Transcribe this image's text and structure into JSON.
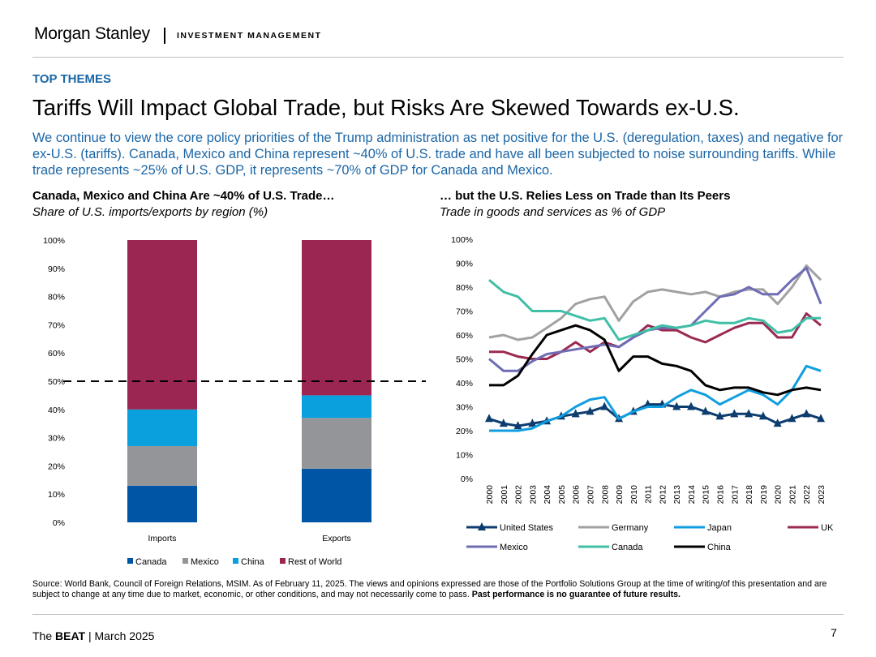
{
  "header": {
    "brand": "Morgan Stanley",
    "brand_sub": "INVESTMENT MANAGEMENT"
  },
  "section_label": "TOP THEMES",
  "title": "Tariffs Will Impact Global Trade, but Risks Are Skewed Towards ex-U.S.",
  "subtitle": "We continue to view the core policy priorities of the Trump administration as net positive for the U.S. (deregulation, taxes) and negative for ex-U.S. (tariffs). Canada, Mexico and China represent ~40% of U.S. trade and have all been subjected to noise surrounding tariffs. While trade represents ~25% of U.S. GDP, it represents ~70% of GDP for Canada and Mexico.",
  "colors": {
    "accent": "#1b66a6",
    "canada_bar": "#0055a4",
    "mexico_bar": "#939598",
    "china_bar": "#0aa0dd",
    "row_bar": "#9a2651"
  },
  "left_chart": {
    "heading": "Canada, Mexico and China Are ~40% of U.S. Trade…",
    "subheading": "Share of U.S. imports/exports by region (%)"
  },
  "right_chart": {
    "heading": "… but the U.S. Relies Less on Trade than Its Peers",
    "subheading": "Trade in goods and services as % of GDP"
  },
  "chart_data": [
    {
      "type": "bar",
      "stacked": true,
      "categories": [
        "Imports",
        "Exports"
      ],
      "series": [
        {
          "name": "Canada",
          "color": "#0055a4",
          "values": [
            13,
            19
          ]
        },
        {
          "name": "Mexico",
          "color": "#939598",
          "values": [
            14,
            18
          ]
        },
        {
          "name": "China",
          "color": "#0aa0dd",
          "values": [
            13,
            8
          ]
        },
        {
          "name": "Rest of World",
          "color": "#9a2651",
          "values": [
            60,
            55
          ]
        }
      ],
      "ylim": [
        0,
        100
      ],
      "yticks": [
        "0%",
        "10%",
        "20%",
        "30%",
        "40%",
        "50%",
        "60%",
        "70%",
        "80%",
        "90%",
        "100%"
      ],
      "reference_line": {
        "value": 50,
        "style": "dashed"
      },
      "legend": "bottom"
    },
    {
      "type": "line",
      "x": [
        "2000",
        "2001",
        "2002",
        "2003",
        "2004",
        "2005",
        "2006",
        "2007",
        "2008",
        "2009",
        "2010",
        "2011",
        "2012",
        "2013",
        "2014",
        "2015",
        "2016",
        "2017",
        "2018",
        "2019",
        "2020",
        "2021",
        "2022",
        "2023"
      ],
      "series": [
        {
          "name": "United States",
          "color": "#0d3d6e",
          "marker": "triangle",
          "values": [
            25,
            23,
            22,
            23,
            24,
            26,
            27,
            28,
            30,
            25,
            28,
            31,
            31,
            30,
            30,
            28,
            26,
            27,
            27,
            26,
            23,
            25,
            27,
            25
          ]
        },
        {
          "name": "Germany",
          "color": "#a1a1a4",
          "values": [
            59,
            60,
            58,
            59,
            63,
            67,
            73,
            75,
            76,
            66,
            74,
            78,
            79,
            78,
            77,
            78,
            76,
            78,
            79,
            79,
            73,
            80,
            89,
            83
          ]
        },
        {
          "name": "Japan",
          "color": "#119ee0",
          "values": [
            20,
            20,
            20,
            21,
            24,
            26,
            30,
            33,
            34,
            25,
            28,
            30,
            30,
            34,
            37,
            35,
            31,
            34,
            37,
            35,
            31,
            37,
            47,
            45
          ]
        },
        {
          "name": "UK",
          "color": "#9b2a53",
          "values": [
            53,
            53,
            51,
            50,
            50,
            53,
            57,
            53,
            57,
            55,
            59,
            64,
            62,
            62,
            59,
            57,
            60,
            63,
            65,
            65,
            59,
            59,
            69,
            64
          ]
        },
        {
          "name": "Mexico",
          "color": "#6e6db4",
          "values": [
            50,
            45,
            45,
            49,
            52,
            53,
            54,
            55,
            56,
            55,
            59,
            62,
            63,
            63,
            64,
            70,
            76,
            77,
            80,
            77,
            77,
            83,
            88,
            73
          ]
        },
        {
          "name": "Canada",
          "color": "#3fbfa6",
          "values": [
            83,
            78,
            76,
            70,
            70,
            70,
            68,
            66,
            67,
            58,
            60,
            62,
            64,
            63,
            64,
            66,
            65,
            65,
            67,
            66,
            61,
            62,
            67,
            67
          ]
        },
        {
          "name": "China",
          "color": "#000000",
          "values": [
            39,
            39,
            43,
            52,
            60,
            62,
            64,
            62,
            58,
            45,
            51,
            51,
            48,
            47,
            45,
            39,
            37,
            38,
            38,
            36,
            35,
            37,
            38,
            37
          ]
        }
      ],
      "ylim": [
        0,
        100
      ],
      "yticks": [
        "0%",
        "10%",
        "20%",
        "30%",
        "40%",
        "50%",
        "60%",
        "70%",
        "80%",
        "90%",
        "100%"
      ],
      "legend": "bottom"
    }
  ],
  "source": {
    "text": "Source: World Bank, Council of Foreign Relations, MSIM. As of February 11, 2025. The views and opinions expressed are those of the Portfolio Solutions Group at the time of writing/of this presentation and are subject to change at any time due to market, economic, or other conditions, and may not necessarily come to pass. ",
    "bold": "Past performance is no guarantee of future results."
  },
  "footer": {
    "prefix": "The ",
    "bold": "BEAT",
    "suffix": " | March 2025",
    "page": "7"
  }
}
